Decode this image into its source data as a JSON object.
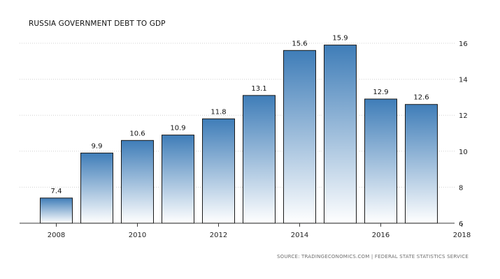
{
  "chart_data": {
    "type": "bar",
    "title": "RUSSIA GOVERNMENT DEBT TO GDP",
    "source": "SOURCE: TRADINGECONOMICS.COM | FEDERAL STATE STATISTICS SERVICE",
    "categories": [
      "2008",
      "2009",
      "2010",
      "2011",
      "2012",
      "2013",
      "2014",
      "2015",
      "2016",
      "2017"
    ],
    "values": [
      7.4,
      9.9,
      10.6,
      10.9,
      11.8,
      13.1,
      15.6,
      15.9,
      12.9,
      12.6
    ],
    "data_labels": [
      "7.4",
      "9.9",
      "10.6",
      "10.9",
      "11.8",
      "13.1",
      "15.6",
      "15.9",
      "12.9",
      "12.6"
    ],
    "x_ticks": [
      "2008",
      "2010",
      "2012",
      "2014",
      "2016",
      "2018"
    ],
    "y_ticks": [
      "6",
      "8",
      "10",
      "12",
      "14",
      "16"
    ],
    "ylim": [
      6,
      16
    ],
    "y_axis_side": "right",
    "grid": "horizontal-dotted",
    "xlabel": "",
    "ylabel": "",
    "colors": {
      "bar_top": "#3f7db8",
      "bar_bottom": "#ffffff",
      "bar_border": "#1a1a1a",
      "grid": "#d0d0d0"
    }
  }
}
